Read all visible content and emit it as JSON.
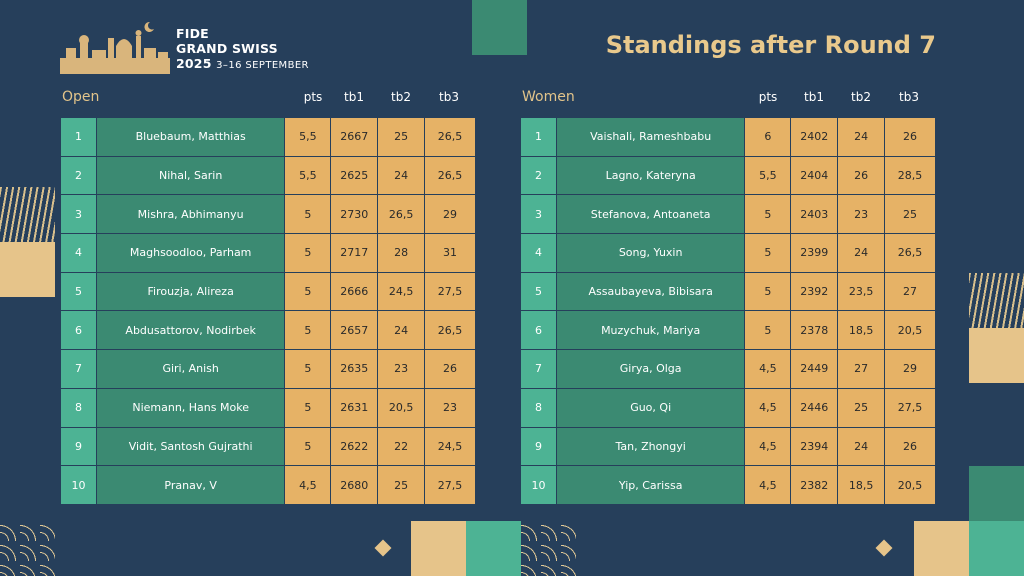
{
  "event": {
    "logo_line1": "FIDE",
    "logo_line2": "GRAND SWISS",
    "logo_year": "2025",
    "logo_dates": "3–16 SEPTEMBER"
  },
  "title": "Standings after Round 7",
  "columns": {
    "pts": "pts",
    "tb1": "tb1",
    "tb2": "tb2",
    "tb3": "tb3"
  },
  "open": {
    "label": "Open",
    "rows": [
      {
        "rank": "1",
        "name": "Bluebaum, Matthias",
        "pts": "5,5",
        "tb1": "2667",
        "tb2": "25",
        "tb3": "26,5"
      },
      {
        "rank": "2",
        "name": "Nihal, Sarin",
        "pts": "5,5",
        "tb1": "2625",
        "tb2": "24",
        "tb3": "26,5"
      },
      {
        "rank": "3",
        "name": "Mishra, Abhimanyu",
        "pts": "5",
        "tb1": "2730",
        "tb2": "26,5",
        "tb3": "29"
      },
      {
        "rank": "4",
        "name": "Maghsoodloo, Parham",
        "pts": "5",
        "tb1": "2717",
        "tb2": "28",
        "tb3": "31"
      },
      {
        "rank": "5",
        "name": "Firouzja, Alireza",
        "pts": "5",
        "tb1": "2666",
        "tb2": "24,5",
        "tb3": "27,5"
      },
      {
        "rank": "6",
        "name": "Abdusattorov, Nodirbek",
        "pts": "5",
        "tb1": "2657",
        "tb2": "24",
        "tb3": "26,5"
      },
      {
        "rank": "7",
        "name": "Giri, Anish",
        "pts": "5",
        "tb1": "2635",
        "tb2": "23",
        "tb3": "26"
      },
      {
        "rank": "8",
        "name": "Niemann, Hans Moke",
        "pts": "5",
        "tb1": "2631",
        "tb2": "20,5",
        "tb3": "23"
      },
      {
        "rank": "9",
        "name": "Vidit, Santosh Gujrathi",
        "pts": "5",
        "tb1": "2622",
        "tb2": "22",
        "tb3": "24,5"
      },
      {
        "rank": "10",
        "name": "Pranav, V",
        "pts": "4,5",
        "tb1": "2680",
        "tb2": "25",
        "tb3": "27,5"
      }
    ]
  },
  "women": {
    "label": "Women",
    "rows": [
      {
        "rank": "1",
        "name": "Vaishali, Rameshbabu",
        "pts": "6",
        "tb1": "2402",
        "tb2": "24",
        "tb3": "26"
      },
      {
        "rank": "2",
        "name": "Lagno, Kateryna",
        "pts": "5,5",
        "tb1": "2404",
        "tb2": "26",
        "tb3": "28,5"
      },
      {
        "rank": "3",
        "name": "Stefanova, Antoaneta",
        "pts": "5",
        "tb1": "2403",
        "tb2": "23",
        "tb3": "25"
      },
      {
        "rank": "4",
        "name": "Song, Yuxin",
        "pts": "5",
        "tb1": "2399",
        "tb2": "24",
        "tb3": "26,5"
      },
      {
        "rank": "5",
        "name": "Assaubayeva, Bibisara",
        "pts": "5",
        "tb1": "2392",
        "tb2": "23,5",
        "tb3": "27"
      },
      {
        "rank": "6",
        "name": "Muzychuk, Mariya",
        "pts": "5",
        "tb1": "2378",
        "tb2": "18,5",
        "tb3": "20,5"
      },
      {
        "rank": "7",
        "name": "Girya, Olga",
        "pts": "4,5",
        "tb1": "2449",
        "tb2": "27",
        "tb3": "29"
      },
      {
        "rank": "8",
        "name": "Guo, Qi",
        "pts": "4,5",
        "tb1": "2446",
        "tb2": "25",
        "tb3": "27,5"
      },
      {
        "rank": "9",
        "name": "Tan, Zhongyi",
        "pts": "4,5",
        "tb1": "2394",
        "tb2": "24",
        "tb3": "26"
      },
      {
        "rank": "10",
        "name": "Yip, Carissa",
        "pts": "4,5",
        "tb1": "2382",
        "tb2": "18,5",
        "tb3": "20,5"
      }
    ]
  },
  "colors": {
    "background": "#263f5b",
    "rank_cell": "#4db394",
    "name_cell": "#3b8a72",
    "score_cell": "#e6b266",
    "accent_text": "#e9c98c"
  }
}
